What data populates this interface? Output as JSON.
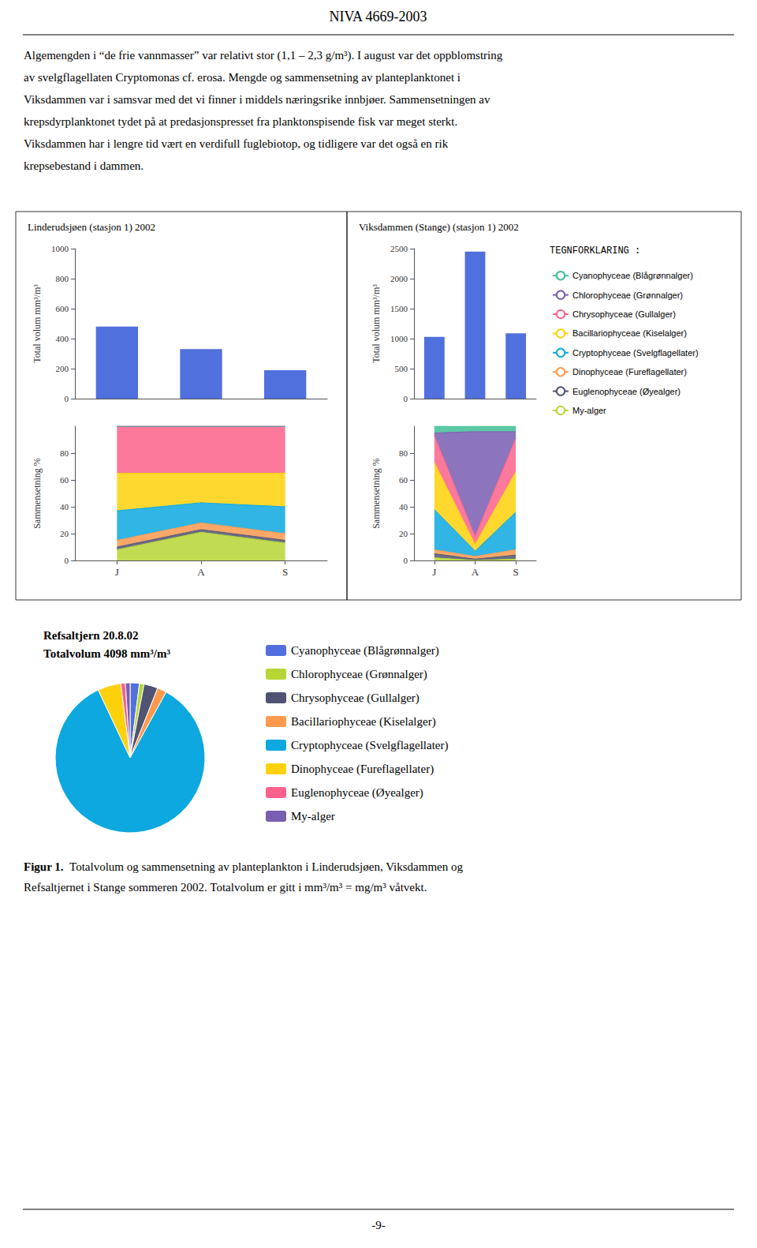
{
  "title": "NIVA 4669-2003",
  "annotations": [
    "Algemengden i “de frie vannmasser” var relativt stor (1,1 – 2,3 g/m³). I august var det oppblomstring",
    "av svelgflagellaten Cryptomonas cf. erosa. Mengde og sammensetning av planteplanktonet i",
    "Viksdammen var i samsvar med det vi finner i middels næringsrike innbjøer. Sammensetningen av",
    "krepsdyrplanktonet tydet på at predasjonspresset fra planktonspisende fisk var meget sterkt.",
    "Viksdammen har i lengre tid vært en verdifull fuglebiotop, og tidligere var det også en rik",
    "krepsebestand i dammen.",
    "Figur 1.",
    "  Totalvolum og sammensetning av planteplankton i Linderudsjøen, Viksdammen og",
    "Refsaltjernet i Stange sommeren 2002. Totalvolum er gitt i mm³/m³ = mg/m³ våtvekt.",
    "-9-"
  ],
  "chart_data": [
    {
      "type": "bar",
      "title": "Linderudsjøen (stasjon 1) 2002",
      "categories": [
        "J",
        "A",
        "S"
      ],
      "values": [
        480,
        330,
        190
      ],
      "ylabel": "Total volum mm³/m³",
      "ylim": [
        0,
        1000
      ],
      "yticks": [
        0,
        200,
        400,
        600,
        800,
        1000
      ],
      "grid": false,
      "tick_labels": "y"
    },
    {
      "type": "area",
      "stacked": true,
      "categories": [
        "J",
        "A",
        "S"
      ],
      "ylabel": "Sammensetning %",
      "ylim": [
        0,
        100
      ],
      "yticks": [
        0,
        20,
        40,
        60,
        80
      ],
      "grid": false,
      "series": [
        {
          "name": "My-alger",
          "values": [
            8,
            21,
            13
          ]
        },
        {
          "name": "Euglenophyceae (Øyealger)",
          "values": [
            2,
            2,
            2
          ]
        },
        {
          "name": "Dinophyceae (Fureflagellater)",
          "values": [
            5,
            5,
            5
          ]
        },
        {
          "name": "Cryptophyceae (Svelgflagellater)",
          "values": [
            22,
            15,
            20
          ]
        },
        {
          "name": "Bacillariophyceae (Kiselalger)",
          "values": [
            28,
            22,
            25
          ]
        },
        {
          "name": "Chrysophyceae (Gullalger)",
          "values": [
            35,
            35,
            35
          ]
        },
        {
          "name": "Chlorophyceae (Grønnalger)",
          "values": [
            0,
            0,
            0
          ]
        },
        {
          "name": "Cyanophyceae (Blågrønnalger)",
          "values": [
            0,
            0,
            0
          ]
        }
      ]
    },
    {
      "type": "bar",
      "title": "Viksdammen (Stange) (stasjon 1) 2002",
      "categories": [
        "J",
        "A",
        "S"
      ],
      "values": [
        1030,
        2450,
        1090
      ],
      "ylabel": "Total volum mm³/m³",
      "ylim": [
        0,
        2500
      ],
      "yticks": [
        0,
        500,
        1000,
        1500,
        2000,
        2500
      ],
      "grid": false,
      "tick_labels": "y"
    },
    {
      "type": "area",
      "stacked": true,
      "categories": [
        "J",
        "A",
        "S"
      ],
      "ylabel": "Sammensetning %",
      "ylim": [
        0,
        100
      ],
      "yticks": [
        0,
        20,
        40,
        60,
        80
      ],
      "grid": false,
      "legend": "right",
      "annotations": [
        "TEGNFORKLARING :"
      ],
      "series": [
        {
          "name": "My-alger",
          "values": [
            2,
            0,
            1
          ]
        },
        {
          "name": "Euglenophyceae (Øyealger)",
          "values": [
            3,
            1,
            3
          ]
        },
        {
          "name": "Dinophyceae (Fureflagellater)",
          "values": [
            3,
            2,
            4
          ]
        },
        {
          "name": "Cryptophyceae (Svelgflagellater)",
          "values": [
            30,
            4,
            28
          ]
        },
        {
          "name": "Bacillariophyceae (Kiselalger)",
          "values": [
            35,
            5,
            30
          ]
        },
        {
          "name": "Chrysophyceae (Gullalger)",
          "values": [
            20,
            6,
            25
          ]
        },
        {
          "name": "Chlorophyceae (Grønnalger)",
          "values": [
            2,
            78,
            5
          ]
        },
        {
          "name": "Cyanophyceae (Blågrønnalger)",
          "values": [
            5,
            4,
            4
          ]
        }
      ]
    },
    {
      "type": "pie",
      "title": "Refsaltjern 20.8.02",
      "subtitle": "Totalvolum 4098 mm³/m³",
      "categories": [
        "Cyanophyceae (Blågrønnalger)",
        "Chlorophyceae (Grønnalger)",
        "Chrysophyceae (Gullalger)",
        "Bacillariophyceae (Kiselalger)",
        "Cryptophyceae (Svelgflagellater)",
        "Dinophyceae (Fureflagellater)",
        "Euglenophyceae (Øyealger)",
        "My-alger"
      ],
      "values": [
        2,
        1,
        3,
        2,
        85,
        5,
        1,
        1
      ],
      "legend": "right"
    }
  ]
}
